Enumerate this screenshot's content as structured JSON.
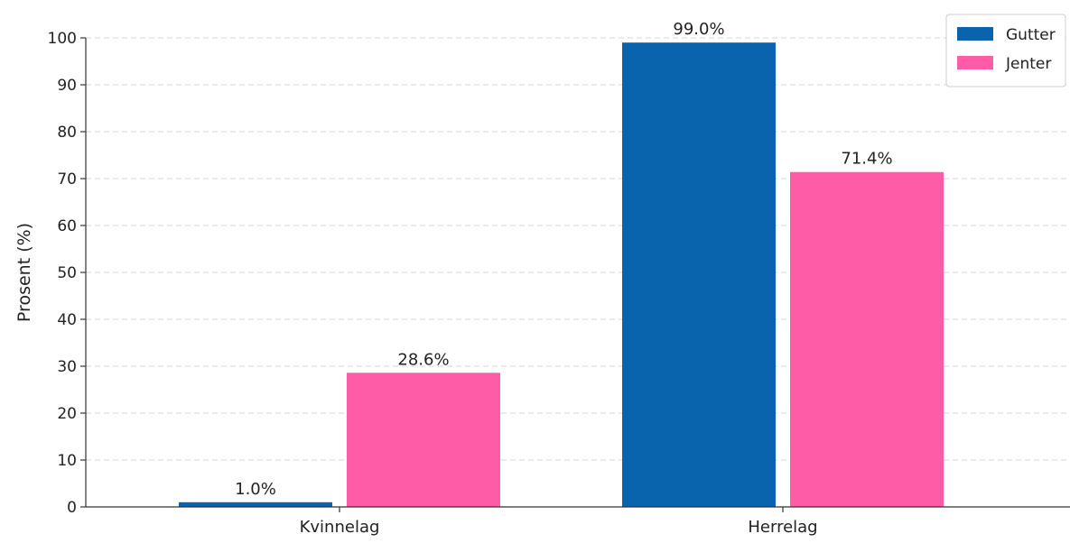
{
  "chart_data": {
    "type": "bar",
    "categories": [
      "Kvinnelag",
      "Herrelag"
    ],
    "series": [
      {
        "name": "Gutter",
        "values": [
          1.0,
          99.0
        ],
        "labels": [
          "1.0%",
          "99.0%"
        ],
        "color": "#0a64ad"
      },
      {
        "name": "Jenter",
        "values": [
          28.6,
          71.4
        ],
        "labels": [
          "28.6%",
          "71.4%"
        ],
        "color": "#ff5ca8"
      }
    ],
    "title": "",
    "xlabel": "",
    "ylabel": "Prosent (%)",
    "ylim": [
      0,
      100
    ],
    "yticks": [
      "0",
      "10",
      "20",
      "30",
      "40",
      "50",
      "60",
      "70",
      "80",
      "90",
      "100"
    ],
    "grid": true,
    "legend_position": "top-right"
  }
}
